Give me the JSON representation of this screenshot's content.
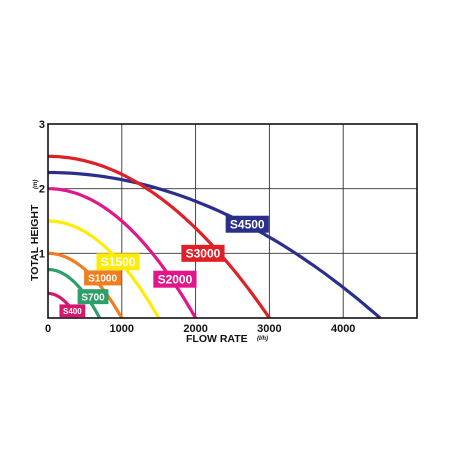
{
  "chart_data": {
    "type": "line",
    "xlabel": "FLOW RATE",
    "x_unit": "(l/h)",
    "ylabel": "TOTAL HEIGHT",
    "y_unit": "(m)",
    "xlim": [
      0,
      5000
    ],
    "ylim": [
      0,
      3
    ],
    "x_ticks": [
      "0",
      "1000",
      "2000",
      "3000",
      "4000"
    ],
    "y_ticks": [
      "1",
      "2",
      "3"
    ],
    "grid": true,
    "series": [
      {
        "name": "S4500",
        "color": "#2b2f8c",
        "label_color": "#2b2f8c",
        "label_text_color": "#ffffff",
        "h_max": 2.25,
        "q_max": 4500,
        "label_at": [
          2700,
          1.45
        ]
      },
      {
        "name": "S3000",
        "color": "#e02027",
        "label_color": "#e02027",
        "label_text_color": "#ffffff",
        "h_max": 2.5,
        "q_max": 3000,
        "label_at": [
          2100,
          1.0
        ]
      },
      {
        "name": "S2000",
        "color": "#e0168a",
        "label_color": "#e0168a",
        "label_text_color": "#ffffff",
        "h_max": 2.0,
        "q_max": 2000,
        "label_at": [
          1720,
          0.6
        ]
      },
      {
        "name": "S1500",
        "color": "#ffec00",
        "label_color": "#ffec00",
        "label_text_color": "#ffffff",
        "h_max": 1.5,
        "q_max": 1500,
        "label_at": [
          950,
          0.87
        ]
      },
      {
        "name": "S1000",
        "color": "#f07d21",
        "label_color": "#f07d21",
        "label_text_color": "#ffffff",
        "h_max": 1.0,
        "q_max": 1000,
        "label_at": [
          740,
          0.62
        ]
      },
      {
        "name": "S700",
        "color": "#2e9e6b",
        "label_color": "#2e9e6b",
        "label_text_color": "#ffffff",
        "h_max": 0.75,
        "q_max": 700,
        "label_at": [
          610,
          0.33
        ]
      },
      {
        "name": "S400",
        "color": "#d5186e",
        "label_color": "#d5186e",
        "label_text_color": "#ffffff",
        "h_max": 0.38,
        "q_max": 400,
        "label_at": [
          330,
          0.11
        ]
      }
    ]
  }
}
